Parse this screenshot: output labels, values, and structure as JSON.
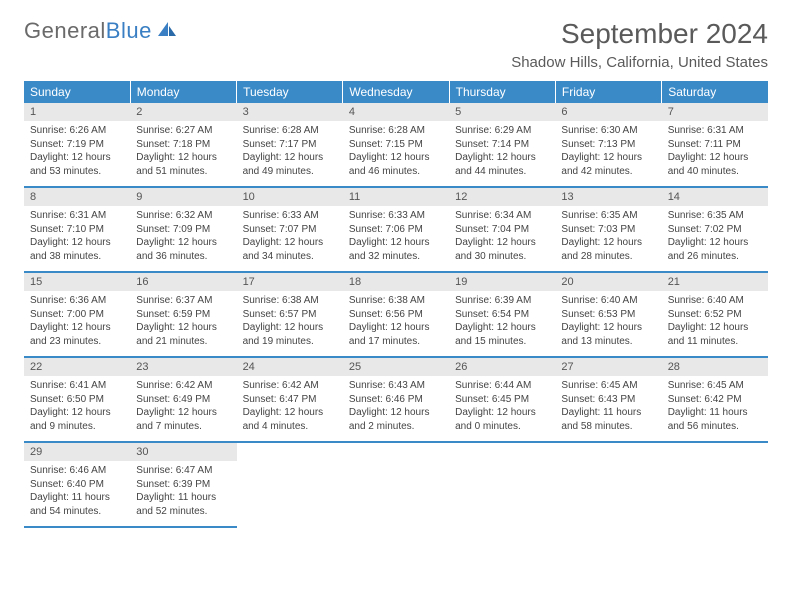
{
  "brand": {
    "part1": "General",
    "part2": "Blue"
  },
  "title": "September 2024",
  "location": "Shadow Hills, California, United States",
  "colors": {
    "header_bg": "#3a8ac8",
    "header_text": "#ffffff",
    "daynum_bg": "#e8e8e8",
    "body_text": "#444444",
    "title_text": "#5a5a5a",
    "row_border": "#3a8ac8"
  },
  "typography": {
    "title_fontsize": 28,
    "location_fontsize": 15,
    "th_fontsize": 12,
    "daynum_fontsize": 11,
    "cell_fontsize": 10
  },
  "weekdays": [
    "Sunday",
    "Monday",
    "Tuesday",
    "Wednesday",
    "Thursday",
    "Friday",
    "Saturday"
  ],
  "weeks": [
    [
      {
        "num": "1",
        "sunrise": "Sunrise: 6:26 AM",
        "sunset": "Sunset: 7:19 PM",
        "daylight": "Daylight: 12 hours and 53 minutes."
      },
      {
        "num": "2",
        "sunrise": "Sunrise: 6:27 AM",
        "sunset": "Sunset: 7:18 PM",
        "daylight": "Daylight: 12 hours and 51 minutes."
      },
      {
        "num": "3",
        "sunrise": "Sunrise: 6:28 AM",
        "sunset": "Sunset: 7:17 PM",
        "daylight": "Daylight: 12 hours and 49 minutes."
      },
      {
        "num": "4",
        "sunrise": "Sunrise: 6:28 AM",
        "sunset": "Sunset: 7:15 PM",
        "daylight": "Daylight: 12 hours and 46 minutes."
      },
      {
        "num": "5",
        "sunrise": "Sunrise: 6:29 AM",
        "sunset": "Sunset: 7:14 PM",
        "daylight": "Daylight: 12 hours and 44 minutes."
      },
      {
        "num": "6",
        "sunrise": "Sunrise: 6:30 AM",
        "sunset": "Sunset: 7:13 PM",
        "daylight": "Daylight: 12 hours and 42 minutes."
      },
      {
        "num": "7",
        "sunrise": "Sunrise: 6:31 AM",
        "sunset": "Sunset: 7:11 PM",
        "daylight": "Daylight: 12 hours and 40 minutes."
      }
    ],
    [
      {
        "num": "8",
        "sunrise": "Sunrise: 6:31 AM",
        "sunset": "Sunset: 7:10 PM",
        "daylight": "Daylight: 12 hours and 38 minutes."
      },
      {
        "num": "9",
        "sunrise": "Sunrise: 6:32 AM",
        "sunset": "Sunset: 7:09 PM",
        "daylight": "Daylight: 12 hours and 36 minutes."
      },
      {
        "num": "10",
        "sunrise": "Sunrise: 6:33 AM",
        "sunset": "Sunset: 7:07 PM",
        "daylight": "Daylight: 12 hours and 34 minutes."
      },
      {
        "num": "11",
        "sunrise": "Sunrise: 6:33 AM",
        "sunset": "Sunset: 7:06 PM",
        "daylight": "Daylight: 12 hours and 32 minutes."
      },
      {
        "num": "12",
        "sunrise": "Sunrise: 6:34 AM",
        "sunset": "Sunset: 7:04 PM",
        "daylight": "Daylight: 12 hours and 30 minutes."
      },
      {
        "num": "13",
        "sunrise": "Sunrise: 6:35 AM",
        "sunset": "Sunset: 7:03 PM",
        "daylight": "Daylight: 12 hours and 28 minutes."
      },
      {
        "num": "14",
        "sunrise": "Sunrise: 6:35 AM",
        "sunset": "Sunset: 7:02 PM",
        "daylight": "Daylight: 12 hours and 26 minutes."
      }
    ],
    [
      {
        "num": "15",
        "sunrise": "Sunrise: 6:36 AM",
        "sunset": "Sunset: 7:00 PM",
        "daylight": "Daylight: 12 hours and 23 minutes."
      },
      {
        "num": "16",
        "sunrise": "Sunrise: 6:37 AM",
        "sunset": "Sunset: 6:59 PM",
        "daylight": "Daylight: 12 hours and 21 minutes."
      },
      {
        "num": "17",
        "sunrise": "Sunrise: 6:38 AM",
        "sunset": "Sunset: 6:57 PM",
        "daylight": "Daylight: 12 hours and 19 minutes."
      },
      {
        "num": "18",
        "sunrise": "Sunrise: 6:38 AM",
        "sunset": "Sunset: 6:56 PM",
        "daylight": "Daylight: 12 hours and 17 minutes."
      },
      {
        "num": "19",
        "sunrise": "Sunrise: 6:39 AM",
        "sunset": "Sunset: 6:54 PM",
        "daylight": "Daylight: 12 hours and 15 minutes."
      },
      {
        "num": "20",
        "sunrise": "Sunrise: 6:40 AM",
        "sunset": "Sunset: 6:53 PM",
        "daylight": "Daylight: 12 hours and 13 minutes."
      },
      {
        "num": "21",
        "sunrise": "Sunrise: 6:40 AM",
        "sunset": "Sunset: 6:52 PM",
        "daylight": "Daylight: 12 hours and 11 minutes."
      }
    ],
    [
      {
        "num": "22",
        "sunrise": "Sunrise: 6:41 AM",
        "sunset": "Sunset: 6:50 PM",
        "daylight": "Daylight: 12 hours and 9 minutes."
      },
      {
        "num": "23",
        "sunrise": "Sunrise: 6:42 AM",
        "sunset": "Sunset: 6:49 PM",
        "daylight": "Daylight: 12 hours and 7 minutes."
      },
      {
        "num": "24",
        "sunrise": "Sunrise: 6:42 AM",
        "sunset": "Sunset: 6:47 PM",
        "daylight": "Daylight: 12 hours and 4 minutes."
      },
      {
        "num": "25",
        "sunrise": "Sunrise: 6:43 AM",
        "sunset": "Sunset: 6:46 PM",
        "daylight": "Daylight: 12 hours and 2 minutes."
      },
      {
        "num": "26",
        "sunrise": "Sunrise: 6:44 AM",
        "sunset": "Sunset: 6:45 PM",
        "daylight": "Daylight: 12 hours and 0 minutes."
      },
      {
        "num": "27",
        "sunrise": "Sunrise: 6:45 AM",
        "sunset": "Sunset: 6:43 PM",
        "daylight": "Daylight: 11 hours and 58 minutes."
      },
      {
        "num": "28",
        "sunrise": "Sunrise: 6:45 AM",
        "sunset": "Sunset: 6:42 PM",
        "daylight": "Daylight: 11 hours and 56 minutes."
      }
    ],
    [
      {
        "num": "29",
        "sunrise": "Sunrise: 6:46 AM",
        "sunset": "Sunset: 6:40 PM",
        "daylight": "Daylight: 11 hours and 54 minutes."
      },
      {
        "num": "30",
        "sunrise": "Sunrise: 6:47 AM",
        "sunset": "Sunset: 6:39 PM",
        "daylight": "Daylight: 11 hours and 52 minutes."
      },
      null,
      null,
      null,
      null,
      null
    ]
  ]
}
